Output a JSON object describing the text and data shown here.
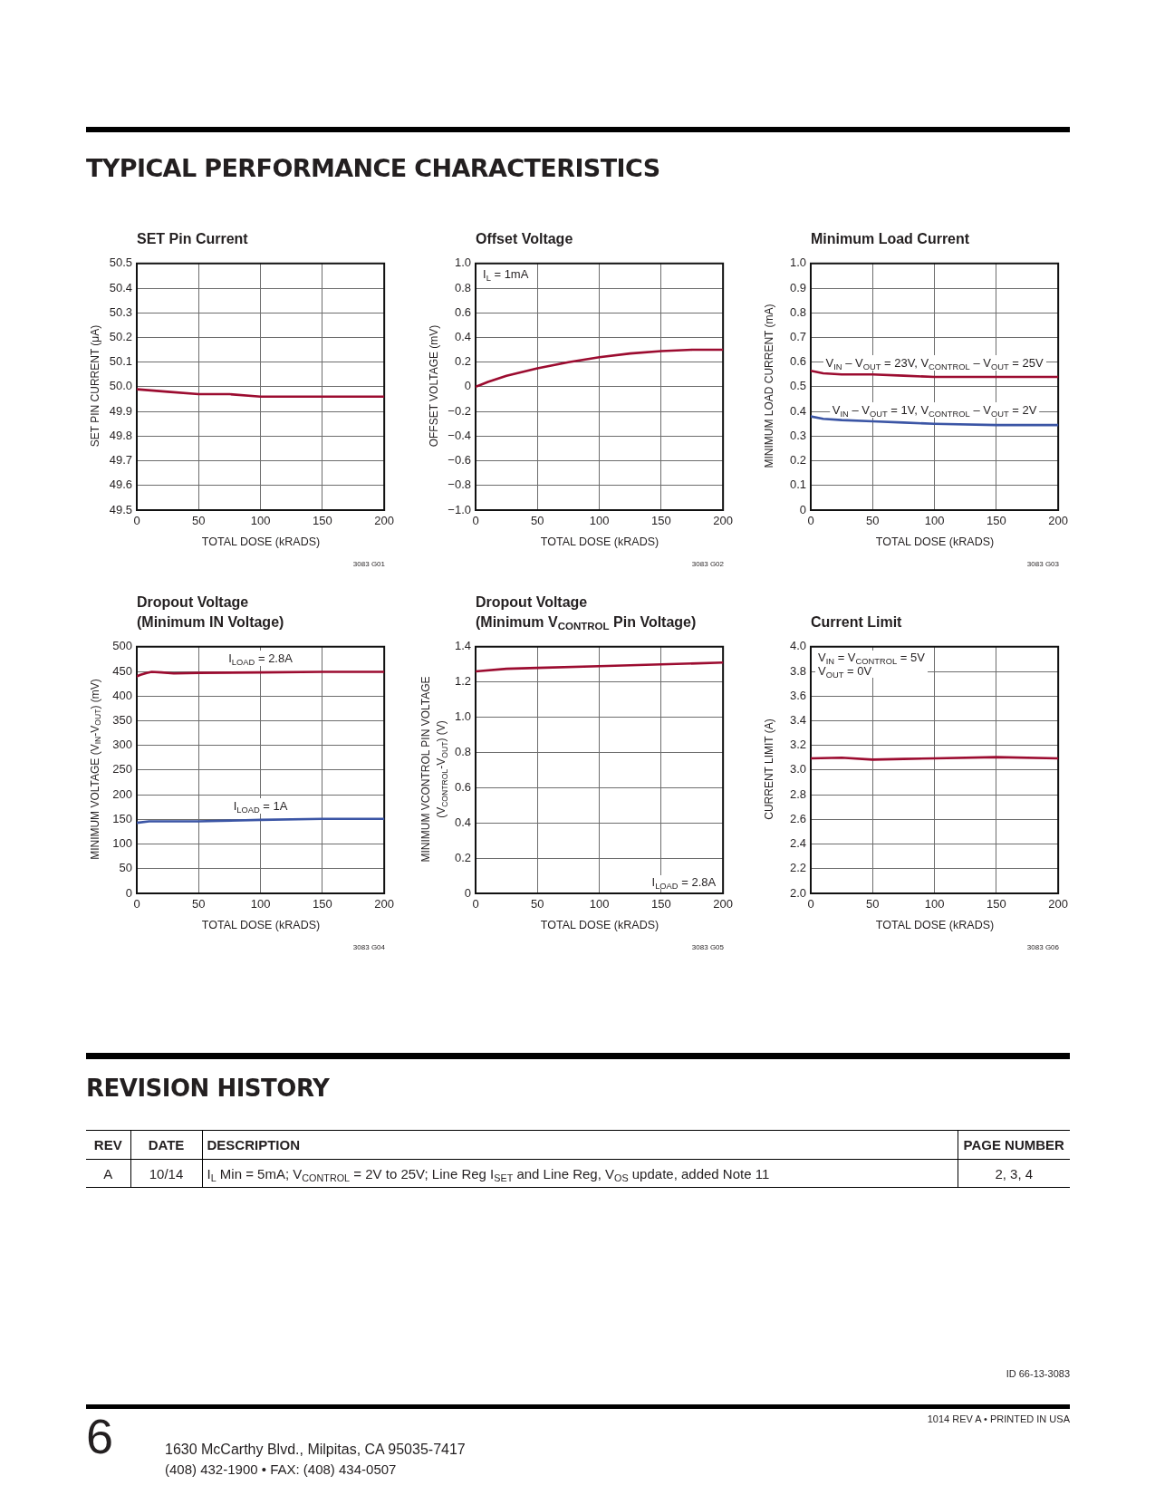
{
  "chart_data": [
    {
      "type": "other",
      "title": "TYPICAL PERFORMANCE CHARACTERISTICS"
    },
    {
      "type": "line",
      "title": "SET Pin Current",
      "xlabel": "TOTAL DOSE (kRADS)",
      "ylabel": "SET PIN CURRENT (μA)",
      "x": [
        0,
        25,
        50,
        75,
        100,
        150,
        200
      ],
      "series": [
        {
          "color": "#9c0c30",
          "values": [
            49.99,
            49.98,
            49.97,
            49.97,
            49.96,
            49.96,
            49.96
          ]
        }
      ],
      "xlim": [
        0,
        200
      ],
      "xticks": [
        0,
        50,
        100,
        150,
        200
      ],
      "ylim": [
        49.5,
        50.5
      ],
      "yticks": [
        49.5,
        49.6,
        49.7,
        49.8,
        49.9,
        {
          "value": 50,
          "label": "50.0"
        },
        50.1,
        50.2,
        50.3,
        50.4,
        50.5
      ],
      "grid": true,
      "annotations": [
        "3083 G01"
      ]
    },
    {
      "type": "line",
      "title": "Offset Voltage",
      "xlabel": "TOTAL DOSE (kRADS)",
      "ylabel": "OFFSET VOLTAGE (mV)",
      "x": [
        0,
        5,
        10,
        25,
        50,
        75,
        100,
        125,
        150,
        175,
        200
      ],
      "series": [
        {
          "color": "#9c0c30",
          "values": [
            0,
            0.02,
            0.04,
            0.09,
            0.15,
            0.2,
            0.24,
            0.27,
            0.29,
            0.3,
            0.3
          ]
        }
      ],
      "xlim": [
        0,
        200
      ],
      "xticks": [
        0,
        50,
        100,
        150,
        200
      ],
      "ylim": [
        -1,
        1
      ],
      "yticks": [
        {
          "value": -1,
          "label": "−1.0"
        },
        {
          "value": -0.8,
          "label": "−0.8"
        },
        {
          "value": -0.6,
          "label": "−0.6"
        },
        {
          "value": -0.4,
          "label": "−0.4"
        },
        {
          "value": -0.2,
          "label": "−0.2"
        },
        0,
        0.2,
        0.4,
        0.6,
        0.8,
        {
          "value": 1,
          "label": "1.0"
        }
      ],
      "grid": true,
      "annotations": [
        "I$_{L}$ = 1mA",
        "3083 G02"
      ]
    },
    {
      "type": "line",
      "title": "Minimum Load Current",
      "xlabel": "TOTAL DOSE (kRADS)",
      "ylabel": "MINIMUM LOAD CURRENT (mA)",
      "x": [
        0,
        10,
        25,
        50,
        75,
        100,
        150,
        200
      ],
      "series": [
        {
          "name": "V$_{IN}$ – V$_{OUT}$ = 23V, V$_{CONTROL}$ – V$_{OUT}$ = 25V",
          "color": "#9c0c30",
          "values": [
            0.565,
            0.555,
            0.55,
            0.55,
            0.545,
            0.54,
            0.54,
            0.54
          ]
        },
        {
          "name": "V$_{IN}$ – V$_{OUT}$ = 1V, V$_{CONTROL}$ – V$_{OUT}$ = 2V",
          "color": "#3b55a5",
          "values": [
            0.38,
            0.37,
            0.365,
            0.36,
            0.355,
            0.35,
            0.345,
            0.345
          ]
        }
      ],
      "xlim": [
        0,
        200
      ],
      "xticks": [
        0,
        50,
        100,
        150,
        200
      ],
      "ylim": [
        0,
        1
      ],
      "yticks": [
        0,
        0.1,
        0.2,
        0.3,
        0.4,
        0.5,
        0.6,
        0.7,
        0.8,
        0.9,
        {
          "value": 1,
          "label": "1.0"
        }
      ],
      "grid": true,
      "annotations": [
        "3083 G03"
      ]
    },
    {
      "type": "line",
      "title": "Dropout Voltage\n(Minimum IN Voltage)",
      "xlabel": "TOTAL DOSE (kRADS)",
      "ylabel": "MINIMUM VOLTAGE (V$_{IN}$-V$_{OUT}$) (mV)",
      "series": [
        {
          "name": "I$_{LOAD}$ = 2.8A",
          "color": "#9c0c30",
          "x": [
            0,
            3,
            8,
            12,
            20,
            30,
            50,
            100,
            150,
            200
          ],
          "values": [
            440,
            443,
            447,
            449,
            448,
            446,
            447,
            448,
            449,
            449
          ]
        },
        {
          "name": "I$_{LOAD}$ = 1A",
          "color": "#3b55a5",
          "x": [
            0,
            10,
            50,
            100,
            150,
            200
          ],
          "values": [
            143,
            146,
            146,
            149,
            151,
            151
          ]
        }
      ],
      "xlim": [
        0,
        200
      ],
      "xticks": [
        0,
        50,
        100,
        150,
        200
      ],
      "ylim": [
        0,
        500
      ],
      "yticks": [
        0,
        50,
        100,
        150,
        200,
        250,
        300,
        350,
        400,
        450,
        500
      ],
      "grid": true,
      "annotations": [
        "3083 G04"
      ]
    },
    {
      "type": "line",
      "title": "Dropout Voltage\n(Minimum V$_{CONTROL}$ Pin Voltage)",
      "xlabel": "TOTAL DOSE (kRADS)",
      "ylabel": "MINIMUM VCONTROL PIN VOLTAGE\n(V$_{CONTROL}$-V$_{OUT}$) (V)",
      "x": [
        0,
        25,
        50,
        100,
        150,
        200
      ],
      "series": [
        {
          "color": "#9c0c30",
          "values": [
            1.26,
            1.275,
            1.28,
            1.29,
            1.3,
            1.31
          ]
        }
      ],
      "xlim": [
        0,
        200
      ],
      "xticks": [
        0,
        50,
        100,
        150,
        200
      ],
      "ylim": [
        0,
        1.4
      ],
      "yticks": [
        0,
        0.2,
        0.4,
        0.6,
        0.8,
        {
          "value": 1,
          "label": "1.0"
        },
        1.2,
        1.4
      ],
      "grid": true,
      "annotations": [
        "I$_{LOAD}$ = 2.8A",
        "3083 G05"
      ]
    },
    {
      "type": "line",
      "title": "Current Limit",
      "xlabel": "TOTAL DOSE (kRADS)",
      "ylabel": "CURRENT LIMIT (A)",
      "x": [
        0,
        25,
        50,
        75,
        100,
        150,
        200
      ],
      "series": [
        {
          "color": "#9c0c30",
          "values": [
            3.095,
            3.1,
            3.085,
            3.09,
            3.095,
            3.105,
            3.095
          ]
        }
      ],
      "xlim": [
        0,
        200
      ],
      "xticks": [
        0,
        50,
        100,
        150,
        200
      ],
      "ylim": [
        2,
        4
      ],
      "yticks": [
        {
          "value": 2,
          "label": "2.0"
        },
        2.2,
        2.4,
        2.6,
        2.8,
        {
          "value": 3,
          "label": "3.0"
        },
        3.2,
        3.4,
        3.6,
        3.8,
        {
          "value": 4,
          "label": "4.0"
        }
      ],
      "grid": true,
      "annotations": [
        "V$_{IN}$ = V$_{CONTROL}$ = 5V\nV$_{OUT}$ = 0V",
        "3083 G06"
      ]
    },
    {
      "type": "other",
      "title": "REVISION HISTORY",
      "categories": [
        "REV",
        "DATE",
        "DESCRIPTION",
        "PAGE NUMBER"
      ],
      "annotations": [
        "A",
        "10/14",
        "I$_{L}$ Min = 5mA; V$_{CONTROL}$ = 2V to 25V; Line Reg I$_{SET}$ and Line Reg, V$_{OS}$ update, added Note 11",
        "2, 3, 4"
      ]
    },
    {
      "type": "other",
      "annotations": [
        "ID 66-13-3083",
        "1014 REV A • PRINTED IN USA",
        "6",
        "1630 McCarthy Blvd., Milpitas, CA 95035-7417",
        "(408) 432-1900 • FAX: (408) 434-0507"
      ]
    }
  ]
}
